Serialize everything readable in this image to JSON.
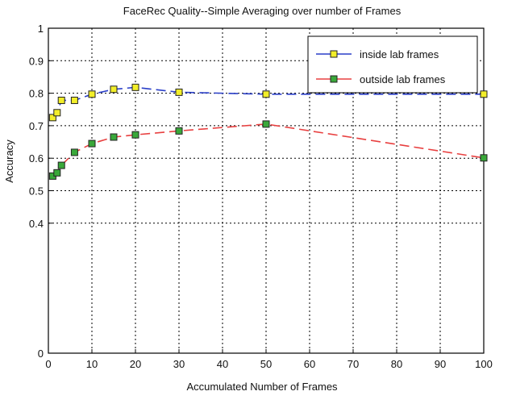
{
  "chart_data": {
    "type": "line",
    "title": "FaceRec Quality--Simple Averaging over number of Frames",
    "xlabel": "Accumulated Number of Frames",
    "ylabel": "Accuracy",
    "xlim": [
      0,
      100
    ],
    "ylim": [
      0,
      1
    ],
    "xticks": [
      "0",
      "10",
      "20",
      "30",
      "40",
      "50",
      "60",
      "70",
      "80",
      "90",
      "100"
    ],
    "yticks": [
      "0",
      "0.4",
      "0.5",
      "0.6",
      "0.7",
      "0.8",
      "0.9",
      "1"
    ],
    "grid": true,
    "legend_position": "top-right",
    "series": [
      {
        "name": "inside lab frames",
        "line_color": "#2a3fc8",
        "marker_color": "#f2ee2a",
        "x": [
          1,
          2,
          3,
          6,
          10,
          15,
          20,
          30,
          50,
          100
        ],
        "y": [
          0.725,
          0.74,
          0.778,
          0.778,
          0.797,
          0.812,
          0.818,
          0.803,
          0.797,
          0.797
        ]
      },
      {
        "name": "outside lab frames",
        "line_color": "#e84040",
        "marker_color": "#3aa83a",
        "x": [
          1,
          2,
          3,
          6,
          10,
          15,
          20,
          30,
          50,
          100
        ],
        "y": [
          0.545,
          0.555,
          0.578,
          0.618,
          0.645,
          0.665,
          0.672,
          0.684,
          0.705,
          0.601
        ]
      }
    ]
  }
}
